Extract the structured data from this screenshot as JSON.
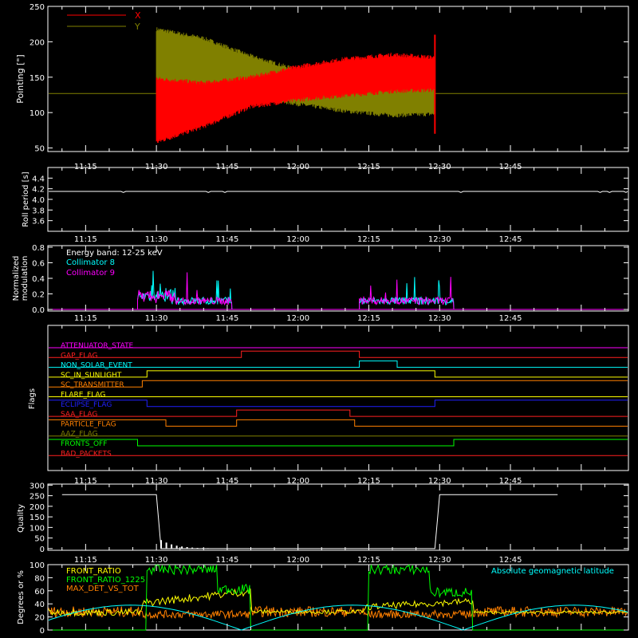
{
  "time_axis": {
    "ticks": [
      "11:15",
      "11:30",
      "11:45",
      "12:00",
      "12:15",
      "12:30",
      "12:45"
    ],
    "tick_minutes": [
      675,
      690,
      705,
      720,
      735,
      750,
      765
    ],
    "range_minutes": [
      667,
      790
    ]
  },
  "chart_data": [
    {
      "type": "line",
      "id": "pointing",
      "ylabel": "Pointing [\"]",
      "ylim": [
        45,
        250
      ],
      "yticks": [
        50,
        100,
        150,
        200,
        250
      ],
      "legend": [
        "X",
        "Y"
      ],
      "legend_placement": "top-left",
      "baseline": 127,
      "active_window": [
        "11:30",
        "12:29"
      ],
      "series": [
        {
          "name": "X",
          "color": "#ff0000",
          "x": [
            "11:30",
            "11:40",
            "11:50",
            "12:00",
            "12:10",
            "12:20",
            "12:29"
          ],
          "upper": [
            148,
            142,
            150,
            165,
            176,
            182,
            178
          ],
          "lower": [
            58,
            80,
            108,
            118,
            124,
            130,
            132
          ]
        },
        {
          "name": "Y",
          "color": "#808000",
          "x": [
            "11:30",
            "11:40",
            "11:50",
            "12:00",
            "12:10",
            "12:20",
            "12:29"
          ],
          "upper": [
            218,
            205,
            180,
            160,
            158,
            155,
            155
          ],
          "lower": [
            78,
            100,
            122,
            112,
            102,
            96,
            98
          ]
        }
      ]
    },
    {
      "type": "line",
      "id": "roll",
      "ylabel": "Roll period [s]",
      "ylim": [
        3.4,
        4.6
      ],
      "yticks": [
        3.6,
        3.8,
        4.0,
        4.2,
        4.4
      ],
      "series": [
        {
          "name": "",
          "color": "#ffffff",
          "x": [
            "11:10",
            "12:55"
          ],
          "values": [
            4.15,
            4.15
          ]
        }
      ]
    },
    {
      "type": "line",
      "id": "modulation",
      "ylabel": [
        "Normalized",
        "modulation"
      ],
      "ylim": [
        -0.02,
        0.82
      ],
      "yticks": [
        0.0,
        0.2,
        0.4,
        0.6,
        0.8
      ],
      "legend": [
        "Energy band: 12-25 keV",
        "Collimator 8",
        "Collimator 9"
      ],
      "legend_colors": [
        "#ffffff",
        "#00ffff",
        "#ff00ff"
      ],
      "intervals": [
        [
          "11:26",
          "11:46"
        ],
        [
          "12:13",
          "12:33"
        ]
      ],
      "series": [
        {
          "name": "Collimator 8",
          "color": "#00ffff"
        },
        {
          "name": "Collimator 9",
          "color": "#ff00ff"
        }
      ]
    },
    {
      "type": "line",
      "id": "flags",
      "ylabel": "Flags",
      "flags": [
        {
          "label": "ATTENUATOR_STATE",
          "color": "#ff00ff",
          "changes": []
        },
        {
          "label": "GAP_FLAG",
          "color": "#ff2020",
          "changes": [
            [
              "11:48",
              1
            ],
            [
              "12:13",
              0
            ]
          ]
        },
        {
          "label": "NON_SOLAR_EVENT",
          "color": "#00ffff",
          "changes": [
            [
              "12:13",
              1
            ],
            [
              "12:21",
              0
            ]
          ]
        },
        {
          "label": "SC_IN_SUNLIGHT",
          "color": "#ffff00",
          "changes": [
            [
              "11:28",
              1
            ],
            [
              "12:29",
              0
            ]
          ]
        },
        {
          "label": "SC_TRANSMITTER",
          "color": "#ff8000",
          "changes": [
            [
              "11:27",
              1
            ]
          ]
        },
        {
          "label": "FLARE_FLAG",
          "color": "#ffff00",
          "changes": []
        },
        {
          "label": "ECLIPSE_FLAG",
          "color": "#2020ff",
          "changes": [
            [
              "11:28",
              0
            ],
            [
              "12:29",
              1
            ]
          ]
        },
        {
          "label": "SAA_FLAG",
          "color": "#ff2020",
          "changes": [
            [
              "11:47",
              1
            ],
            [
              "12:11",
              0
            ]
          ]
        },
        {
          "label": "PARTICLE_FLAG",
          "color": "#ff8000",
          "changes": [
            [
              "11:32",
              0
            ],
            [
              "11:47",
              1
            ],
            [
              "12:12",
              0
            ]
          ]
        },
        {
          "label": "AAZ_FLAG",
          "color": "#808000",
          "changes": []
        },
        {
          "label": "FRONTS_OFF",
          "color": "#00ff00",
          "changes": [
            [
              "11:26",
              0
            ],
            [
              "12:33",
              1
            ]
          ]
        },
        {
          "label": "BAD_PACKETS",
          "color": "#ff2020",
          "changes": []
        }
      ]
    },
    {
      "type": "line",
      "id": "quality",
      "ylabel": "Quality",
      "ylim": [
        -8,
        305
      ],
      "yticks": [
        0,
        50,
        100,
        150,
        200,
        250,
        300
      ],
      "series": [
        {
          "name": "",
          "color": "#ffffff",
          "x": [
            "11:10",
            "11:30",
            "11:31",
            "12:29",
            "12:30",
            "12:55"
          ],
          "values": [
            255,
            255,
            0,
            0,
            255,
            255
          ]
        }
      ]
    },
    {
      "type": "line",
      "id": "ratios",
      "ylabel": "Degrees or %",
      "ylim": [
        0,
        100
      ],
      "yticks": [
        0,
        20,
        40,
        60,
        80,
        100
      ],
      "legend": [
        "FRONT_RATIO",
        "FRONT_RATIO_1225",
        "MAX_DET_VS_TOT"
      ],
      "legend_colors": [
        "#ffff00",
        "#00ff00",
        "#ff8000"
      ],
      "right_legend": "Absolute geomagnetic latitude",
      "right_legend_color": "#00ffff",
      "series": [
        {
          "name": "FRONT_RATIO",
          "color": "#ffff00"
        },
        {
          "name": "FRONT_RATIO_1225",
          "color": "#00ff00"
        },
        {
          "name": "MAX_DET_VS_TOT",
          "color": "#ff8000"
        },
        {
          "name": "Absolute geomagnetic latitude",
          "color": "#00ffff"
        }
      ]
    }
  ]
}
